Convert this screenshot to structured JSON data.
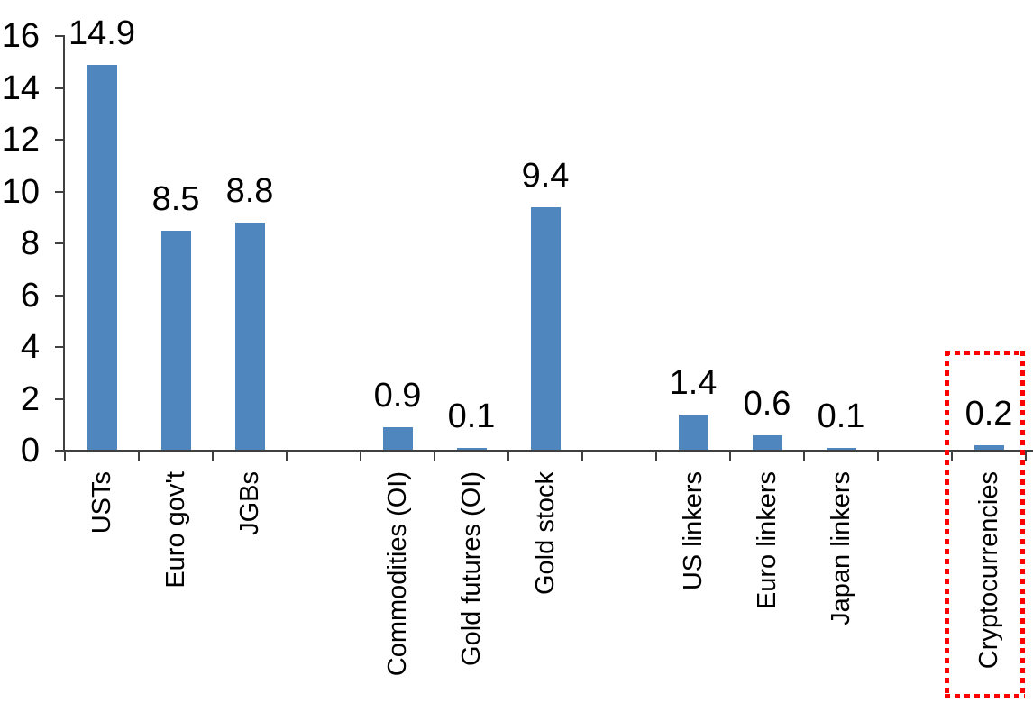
{
  "chart_data": {
    "type": "bar",
    "title": "",
    "xlabel": "",
    "ylabel": "",
    "categories": [
      "USTs",
      "Euro gov't",
      "JGBs",
      "Commodities (OI)",
      "Gold futures (OI)",
      "Gold stock",
      "US linkers",
      "Euro linkers",
      "Japan linkers",
      "Cryptocurrencies"
    ],
    "values": [
      14.9,
      8.5,
      8.8,
      0.9,
      0.1,
      9.4,
      1.4,
      0.6,
      0.1,
      0.2
    ],
    "value_labels": [
      "14.9",
      "8.5",
      "8.8",
      "0.9",
      "0.1",
      "9.4",
      "1.4",
      "0.6",
      "0.1",
      "0.2"
    ],
    "slots": [
      0,
      1,
      2,
      4,
      5,
      6,
      8,
      9,
      10,
      12
    ],
    "total_slots": 13,
    "yticks": [
      "16",
      "14",
      "12",
      "10",
      "8",
      "6",
      "4",
      "2",
      "0"
    ],
    "ytick_values": [
      16,
      14,
      12,
      10,
      8,
      6,
      4,
      2,
      0
    ],
    "ylim": [
      0,
      16
    ],
    "grid": false,
    "legend": false,
    "bar_color": "#4E86BD",
    "axis_color": "#404040",
    "text_color": "#000000",
    "highlight": {
      "category": "Cryptocurrencies",
      "shape": "dotted-rectangle",
      "color": "#FF0000"
    }
  }
}
